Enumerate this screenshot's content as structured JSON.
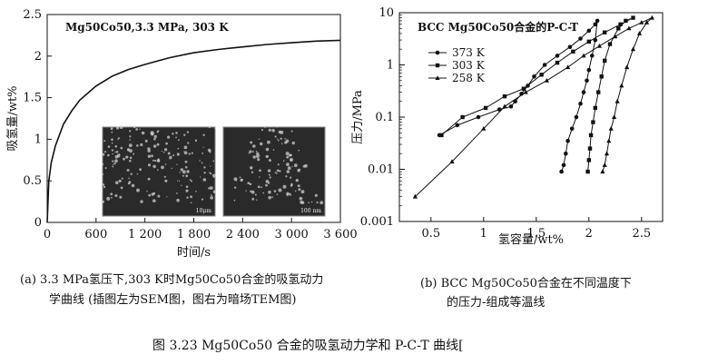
{
  "chart_data": [
    {
      "type": "line",
      "title": "",
      "inset_label": "Mg50Co50,3.3 MPa, 303 K",
      "xlabel": "时间/s",
      "ylabel": "吸氢量/wt%",
      "xlim": [
        0,
        3600
      ],
      "ylim": [
        0,
        2.5
      ],
      "x_ticks": [
        0,
        600,
        1200,
        1800,
        2400,
        3000,
        3600
      ],
      "x_tick_labels": [
        "0",
        "600",
        "1 200",
        "1 800",
        "2 400",
        "3 000",
        "3 600"
      ],
      "y_ticks": [
        0,
        0.5,
        1,
        1.5,
        2,
        2.5
      ],
      "y_tick_labels": [
        "0",
        "0.5",
        "1",
        "1.5",
        "2",
        "2.5"
      ],
      "series": [
        {
          "x": [
            0,
            20,
            50,
            100,
            200,
            300,
            400,
            600,
            800,
            1000,
            1200,
            1500,
            1800,
            2100,
            2400,
            2700,
            3000,
            3300,
            3600
          ],
          "y": [
            0,
            0.5,
            0.72,
            0.92,
            1.18,
            1.34,
            1.47,
            1.64,
            1.76,
            1.84,
            1.9,
            1.98,
            2.04,
            2.08,
            2.11,
            2.14,
            2.16,
            2.18,
            2.19
          ]
        }
      ],
      "insets": [
        {
          "label": "SEM",
          "scale_text": "10μm"
        },
        {
          "label": "TEM",
          "scale_text": "100 nm"
        }
      ],
      "caption": [
        "(a) 3.3 MPa氢压下,303 K时Mg50Co50合金的吸氢动力",
        "学曲线 (插图左为SEM图，图右为暗场TEM图)"
      ],
      "grid": false
    },
    {
      "type": "line",
      "title": "BCC Mg50Co50合金的P-C-T",
      "xlabel": "氢容量/wt%",
      "ylabel": "压力/MPa",
      "y_scale": "log",
      "xlim": [
        0.2,
        2.7
      ],
      "ylim": [
        0.001,
        10
      ],
      "x_ticks": [
        0.5,
        1,
        1.5,
        2,
        2.5
      ],
      "x_tick_labels": [
        "0.5",
        "1",
        "1.5",
        "2",
        "2.5"
      ],
      "y_ticks": [
        0.001,
        0.01,
        0.1,
        1,
        10
      ],
      "y_tick_labels": [
        "0.001",
        "0.01",
        "0.1",
        "1",
        "10"
      ],
      "legend_position": "top-left",
      "series": [
        {
          "name": "373 K",
          "marker": "circle",
          "x": [
            1.74,
            1.76,
            1.78,
            1.8,
            1.84,
            1.88,
            1.92,
            1.95,
            1.98,
            2.0,
            2.03,
            2.06,
            2.08,
            2.06,
            2.0,
            1.92,
            1.82,
            1.7,
            1.58,
            1.48,
            1.42,
            1.36,
            1.3,
            1.26,
            1.15,
            0.95,
            0.75,
            0.58
          ],
          "y": [
            0.009,
            0.012,
            0.02,
            0.035,
            0.06,
            0.1,
            0.18,
            0.3,
            0.5,
            0.8,
            1.5,
            3,
            7,
            6,
            4.5,
            3.2,
            2.2,
            1.5,
            1.0,
            0.6,
            0.4,
            0.28,
            0.2,
            0.16,
            0.14,
            0.1,
            0.07,
            0.045
          ]
        },
        {
          "name": "303 K",
          "marker": "square",
          "x": [
            1.99,
            2.0,
            2.01,
            2.02,
            2.04,
            2.06,
            2.09,
            2.12,
            2.15,
            2.2,
            2.28,
            2.35,
            2.42,
            2.3,
            2.15,
            2.0,
            1.85,
            1.7,
            1.55,
            1.38,
            1.2,
            1.02,
            0.8,
            0.6
          ],
          "y": [
            0.009,
            0.015,
            0.025,
            0.045,
            0.08,
            0.15,
            0.3,
            0.6,
            1.2,
            2.5,
            5,
            7,
            8,
            6,
            4.2,
            2.8,
            1.8,
            1.1,
            0.65,
            0.35,
            0.25,
            0.15,
            0.1,
            0.045
          ]
        },
        {
          "name": "258 K",
          "marker": "triangle",
          "x": [
            2.13,
            2.15,
            2.17,
            2.19,
            2.21,
            2.24,
            2.27,
            2.31,
            2.36,
            2.42,
            2.48,
            2.55,
            2.6,
            2.5,
            2.38,
            2.25,
            2.1,
            1.95,
            1.8,
            1.6,
            1.4,
            1.2,
            1.0,
            0.7,
            0.35
          ],
          "y": [
            0.009,
            0.012,
            0.02,
            0.035,
            0.06,
            0.1,
            0.2,
            0.4,
            0.9,
            2,
            4,
            6.5,
            8,
            6.5,
            5,
            3.5,
            2.3,
            1.5,
            0.9,
            0.5,
            0.3,
            0.16,
            0.06,
            0.014,
            0.003
          ]
        }
      ],
      "caption": [
        "(b) BCC Mg50Co50合金在不同温度下",
        "的压力-组成等温线"
      ],
      "grid": false
    }
  ],
  "figure_caption": "图 3.23   Mg50Co50 合金的吸氢动力学和 P-C-T 曲线",
  "figure_caption_ref": "[",
  "colors": {
    "line": "#111111",
    "background": "#ffffff",
    "inset_dark": "#2a2a2a"
  }
}
